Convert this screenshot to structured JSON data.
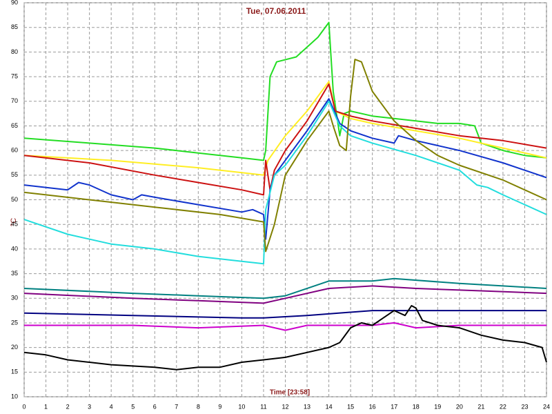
{
  "chart_data": {
    "type": "line",
    "title": "Tue, 07.06.2011",
    "x_label": "Time [23:58]",
    "y_label": "°C",
    "xlim": [
      0,
      24
    ],
    "xticks": [
      0,
      1,
      2,
      3,
      4,
      5,
      6,
      7,
      8,
      9,
      10,
      11,
      12,
      13,
      14,
      15,
      16,
      17,
      18,
      19,
      20,
      21,
      22,
      23,
      24
    ],
    "ylim": [
      10,
      90
    ],
    "yticks": [
      10,
      15,
      20,
      25,
      30,
      35,
      40,
      45,
      50,
      55,
      60,
      65,
      70,
      75,
      80,
      85,
      90
    ],
    "grid": true,
    "series": [
      {
        "color": "#22dd22",
        "x": [
          0,
          3,
          6,
          8,
          10,
          11,
          11.1,
          11.3,
          11.6,
          12.5,
          13.5,
          14,
          14.2,
          14.5,
          14.7,
          15,
          16,
          17,
          18,
          19,
          20,
          20.7,
          21,
          22,
          23,
          24
        ],
        "values": [
          62.5,
          61.5,
          60.5,
          59.5,
          58.5,
          58,
          60,
          75,
          78,
          79,
          83,
          86,
          72,
          63,
          67.5,
          68,
          67,
          66.5,
          66,
          65.5,
          65.5,
          65,
          61.5,
          60,
          59,
          58.5
        ]
      },
      {
        "color": "#ffee22",
        "x": [
          0,
          4,
          8,
          11,
          11.2,
          12,
          13,
          14,
          14.3,
          15,
          16,
          18,
          20,
          22,
          24
        ],
        "values": [
          59,
          58,
          56.5,
          55,
          58,
          63,
          68,
          74,
          68,
          66.5,
          65.5,
          64,
          62.5,
          60.5,
          58.5
        ]
      },
      {
        "color": "#cc1111",
        "x": [
          0,
          3,
          6,
          8,
          10,
          11,
          11.1,
          11.3,
          11.5,
          12,
          13,
          14,
          14.3,
          15,
          16,
          18,
          20,
          22,
          24
        ],
        "values": [
          59,
          57.5,
          55,
          53.5,
          52,
          51,
          58,
          52,
          56,
          60,
          66,
          73.5,
          68,
          67,
          66,
          64.5,
          63,
          62,
          60.5
        ]
      },
      {
        "color": "#1133cc",
        "x": [
          0,
          2,
          2.5,
          3,
          4,
          5,
          5.4,
          6,
          8,
          10,
          10.5,
          11,
          11.1,
          11.3,
          11.5,
          12,
          13,
          14,
          14.5,
          15,
          16,
          17,
          17.2,
          18,
          20,
          22,
          24
        ],
        "values": [
          53,
          52,
          53.5,
          53,
          51,
          50,
          51,
          50.5,
          49,
          47.5,
          48,
          47,
          42,
          52,
          55,
          58,
          64,
          70.5,
          65.5,
          64,
          62.5,
          61.5,
          63,
          62,
          60,
          57.5,
          54.5
        ]
      },
      {
        "color": "#22dddd",
        "x": [
          0,
          2,
          4,
          5,
          6,
          8,
          10,
          11,
          11.1,
          11.5,
          12,
          13,
          14,
          14.5,
          15,
          16,
          18,
          20,
          20.8,
          21.3,
          22,
          23,
          24
        ],
        "values": [
          46,
          43,
          41,
          40.5,
          40,
          38.5,
          37.5,
          37,
          48,
          55,
          57,
          63,
          70,
          65,
          63,
          61.5,
          59,
          56,
          53,
          52.5,
          51,
          49,
          47
        ]
      },
      {
        "color": "#808000",
        "x": [
          0,
          3,
          6,
          9,
          11,
          11.1,
          11.5,
          12,
          13,
          14,
          14.2,
          14.5,
          14.8,
          15,
          15.2,
          15.5,
          16,
          17,
          18,
          19,
          20,
          22,
          24
        ],
        "values": [
          51.5,
          50,
          48.5,
          47,
          45.5,
          39.5,
          45,
          55,
          62,
          68,
          65,
          61,
          60,
          71,
          78.5,
          78,
          72,
          66,
          62,
          59,
          57,
          54,
          50
        ]
      },
      {
        "color": "#008080",
        "x": [
          0,
          5,
          8,
          11,
          12,
          14,
          16,
          17,
          20,
          22,
          24
        ],
        "values": [
          32,
          31,
          30.5,
          30,
          30.5,
          33.5,
          33.5,
          34,
          33,
          32.5,
          32
        ]
      },
      {
        "color": "#800080",
        "x": [
          0,
          5,
          8,
          11,
          12,
          14,
          16,
          18,
          21,
          24
        ],
        "values": [
          31,
          30,
          29.5,
          29,
          30,
          32,
          32.5,
          32,
          31.5,
          31
        ]
      },
      {
        "color": "#000080",
        "x": [
          0,
          5,
          10,
          11,
          13,
          16,
          18,
          24
        ],
        "values": [
          27,
          26.5,
          26,
          26,
          26.5,
          27.5,
          27.5,
          27.5
        ]
      },
      {
        "color": "#cc00cc",
        "x": [
          0,
          5,
          8,
          11,
          12,
          13,
          16,
          17,
          18,
          20,
          24
        ],
        "values": [
          24.5,
          24.5,
          24,
          24.5,
          23.5,
          24.5,
          24.5,
          25,
          24,
          24.5,
          24.5
        ]
      },
      {
        "color": "#000000",
        "x": [
          0,
          1,
          2,
          3,
          4,
          6,
          7,
          8,
          9,
          10,
          11,
          12,
          13,
          14,
          14.5,
          15,
          15.5,
          16,
          16.5,
          17,
          17.5,
          17.8,
          18,
          18.3,
          19,
          20,
          21,
          22,
          23,
          23.8,
          24
        ],
        "values": [
          19,
          18.5,
          17.5,
          17,
          16.5,
          16,
          15.5,
          16,
          16,
          17,
          17.5,
          18,
          19,
          20,
          21,
          24,
          25,
          24.5,
          26,
          27.5,
          26.5,
          28.5,
          28,
          25.5,
          24.5,
          24,
          22.5,
          21.5,
          21,
          20,
          17
        ]
      }
    ]
  }
}
